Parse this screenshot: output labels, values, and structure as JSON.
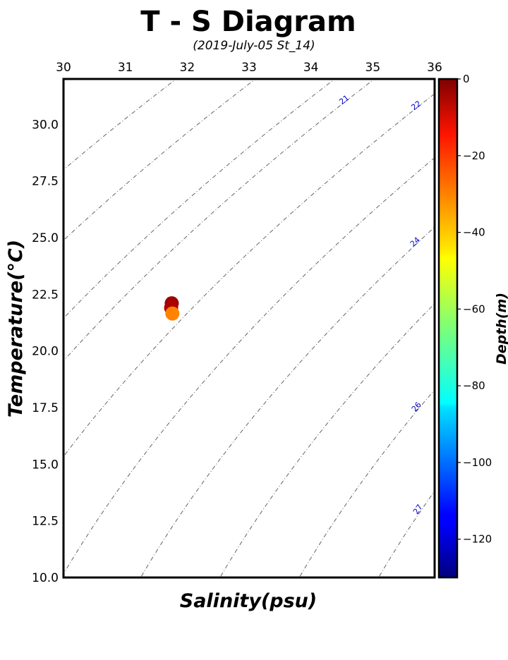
{
  "chart_data": {
    "type": "scatter",
    "title": "T - S Diagram",
    "subtitle": "(2019-July-05 St_14)",
    "xlabel": "Salinity(psu)",
    "ylabel": "Temperature(°C)",
    "xlim": [
      30,
      36
    ],
    "ylim": [
      10,
      32
    ],
    "x_ticks": [
      "30",
      "31",
      "32",
      "33",
      "34",
      "35",
      "36"
    ],
    "y_ticks": [
      "10.0",
      "12.5",
      "15.0",
      "17.5",
      "20.0",
      "22.5",
      "25.0",
      "27.5",
      "30.0"
    ],
    "x_axis_position": "top",
    "colorbar": {
      "label": "Depth(m)",
      "range": [
        -130,
        0
      ],
      "ticks": [
        "0",
        "−20",
        "−40",
        "−60",
        "−80",
        "−100",
        "−120"
      ],
      "colormap": "jet"
    },
    "points": [
      {
        "salinity": 31.75,
        "temperature": 22.1,
        "depth": -4
      },
      {
        "salinity": 31.74,
        "temperature": 21.9,
        "depth": -6
      },
      {
        "salinity": 31.76,
        "temperature": 21.65,
        "depth": -33
      }
    ],
    "density_contours": [
      {
        "label": "21",
        "sigma": 21
      },
      {
        "label": "22",
        "sigma": 22
      },
      {
        "label": "24",
        "sigma": 24
      },
      {
        "label": "26",
        "sigma": 26
      },
      {
        "label": "27",
        "sigma": 27
      }
    ],
    "unlabeled_contours": [
      18.5,
      19.5,
      20.5,
      23,
      25,
      28
    ]
  }
}
